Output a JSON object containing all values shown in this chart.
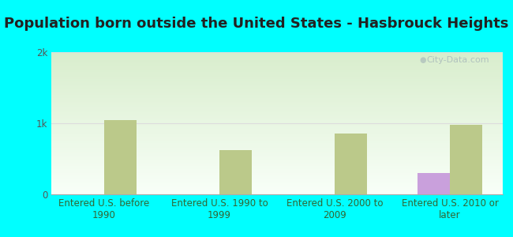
{
  "title": "Population born outside the United States - Hasbrouck Heights",
  "categories": [
    "Entered U.S. before\n1990",
    "Entered U.S. 1990 to\n1999",
    "Entered U.S. 2000 to\n2009",
    "Entered U.S. 2010 or\nlater"
  ],
  "native_values": [
    0,
    0,
    0,
    300
  ],
  "foreign_values": [
    1050,
    620,
    860,
    980
  ],
  "native_color": "#c9a0dc",
  "foreign_color": "#bbc98a",
  "background_color": "#00ffff",
  "plot_bg_top_color": "#d8edcc",
  "plot_bg_bottom_color": "#f5fff5",
  "ylim": [
    0,
    2000
  ],
  "yticks": [
    0,
    1000,
    2000
  ],
  "ytick_labels": [
    "0",
    "1k",
    "2k"
  ],
  "bar_width": 0.28,
  "title_fontsize": 13,
  "tick_fontsize": 8.5,
  "legend_fontsize": 9.5,
  "watermark_text": "City-Data.com",
  "grid_color": "#dddddd",
  "title_color": "#222222",
  "tick_color": "#336633",
  "ytick_color": "#555555"
}
